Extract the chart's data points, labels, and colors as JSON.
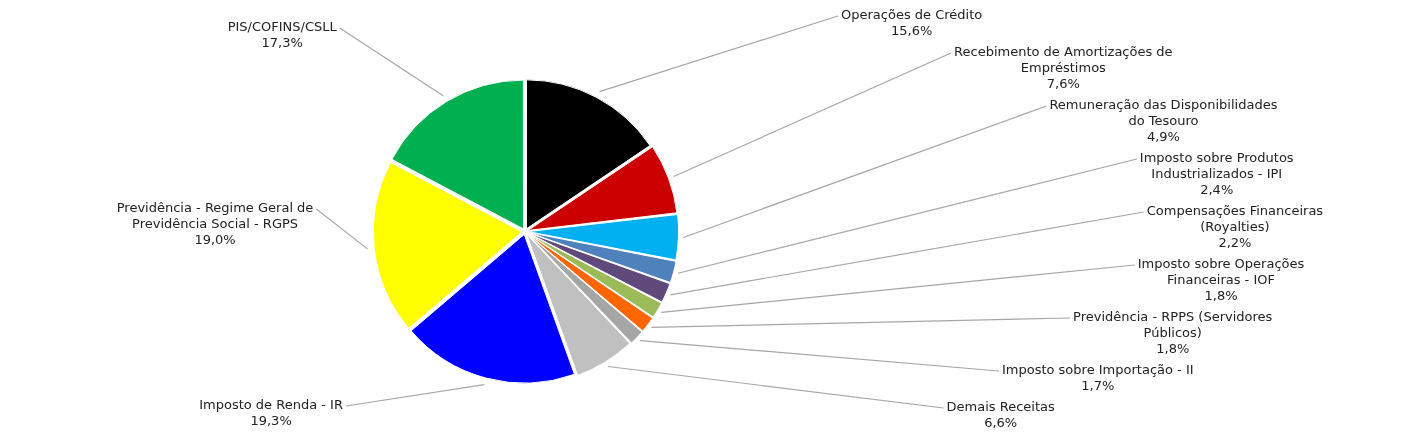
{
  "chart_data": {
    "type": "pie",
    "legend": false,
    "categories": [
      "Operações de Crédito",
      "Recebimento de Amortizações de Empréstimos",
      "Remuneração das Disponibilidades do Tesouro",
      "Imposto sobre Produtos Industrializados - IPI",
      "Compensações Financeiras (Royalties)",
      "Imposto sobre Operações Financeiras - IOF",
      "Previdência - RPPS (Servidores Públicos)",
      "Imposto sobre Importação - II",
      "Demais Receitas",
      "Imposto de Renda - IR",
      "Previdência - Regime Geral de Previdência Social - RGPS",
      "PIS/COFINS/CSLL"
    ],
    "values": [
      15.6,
      7.6,
      4.9,
      2.4,
      2.2,
      1.8,
      1.8,
      1.7,
      6.6,
      19.3,
      19.0,
      17.3
    ],
    "value_labels": [
      "15,6%",
      "7,6%",
      "4,9%",
      "2,4%",
      "2,2%",
      "1,8%",
      "1,8%",
      "1,7%",
      "6,6%",
      "19,3%",
      "19,0%",
      "17,3%"
    ],
    "colors": [
      "#000000",
      "#cc0000",
      "#00b0f0",
      "#4f81bd",
      "#604a7b",
      "#9bbb59",
      "#ff6600",
      "#a6a6a6",
      "#c0c0c0",
      "#0000ff",
      "#ffff00",
      "#00b050"
    ]
  }
}
